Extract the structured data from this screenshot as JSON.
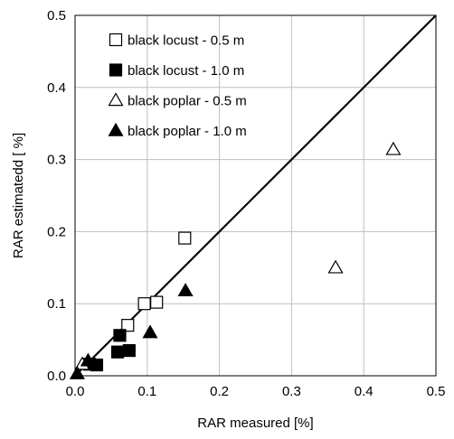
{
  "chart_data": {
    "type": "scatter",
    "xlabel": "RAR measured [%]",
    "ylabel": "RAR estimatedd [ %]",
    "xlim": [
      0.0,
      0.5
    ],
    "ylim": [
      0.0,
      0.5
    ],
    "xticks": [
      "0.0",
      "0.1",
      "0.2",
      "0.3",
      "0.4",
      "0.5"
    ],
    "yticks": [
      "0.0",
      "0.1",
      "0.2",
      "0.3",
      "0.4",
      "0.5"
    ],
    "grid": true,
    "legend_position": "top-left",
    "reference_line": {
      "type": "1:1",
      "from": [
        0.0,
        0.0
      ],
      "to": [
        0.5,
        0.5
      ]
    },
    "series": [
      {
        "name": "black locust - 0.5 m",
        "marker": "open-square",
        "points": [
          [
            0.152,
            0.191
          ],
          [
            0.113,
            0.102
          ],
          [
            0.073,
            0.07
          ],
          [
            0.096,
            0.1
          ]
        ]
      },
      {
        "name": "black locust - 1.0 m",
        "marker": "filled-square",
        "points": [
          [
            0.062,
            0.056
          ],
          [
            0.059,
            0.033
          ],
          [
            0.075,
            0.035
          ],
          [
            0.03,
            0.015
          ],
          [
            0.02,
            0.016
          ]
        ]
      },
      {
        "name": "black poplar - 0.5 m",
        "marker": "open-triangle",
        "points": [
          [
            0.441,
            0.314
          ],
          [
            0.361,
            0.15
          ],
          [
            0.01,
            0.016
          ]
        ]
      },
      {
        "name": "black poplar - 1.0 m",
        "marker": "filled-triangle",
        "points": [
          [
            0.153,
            0.118
          ],
          [
            0.104,
            0.06
          ],
          [
            0.018,
            0.021
          ],
          [
            0.003,
            0.003
          ]
        ]
      }
    ]
  }
}
